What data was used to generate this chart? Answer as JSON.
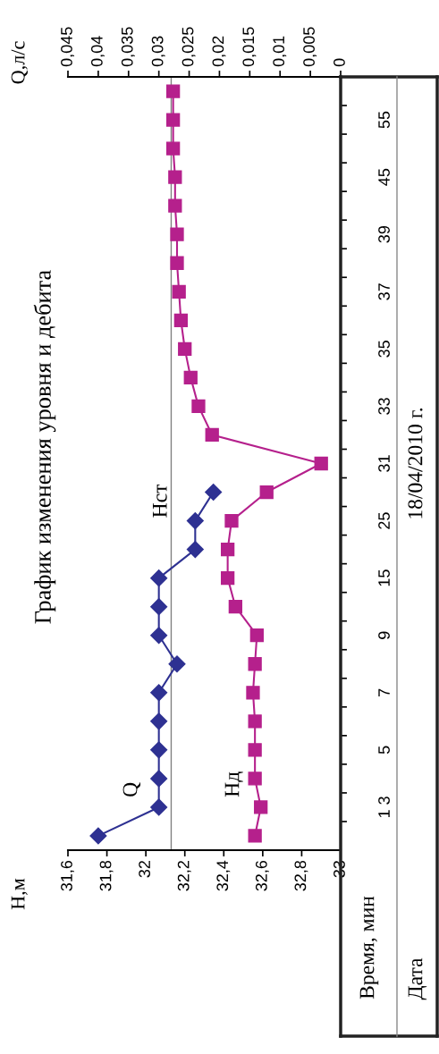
{
  "chart_data": {
    "type": "line",
    "orientation": "horizontal",
    "title": "График изменения уровня и дебита",
    "ylabel": "Время, мин",
    "categories": [
      null,
      "55",
      null,
      "45",
      null,
      "39",
      null,
      "37",
      null,
      "35",
      null,
      "33",
      null,
      "31",
      null,
      "25",
      null,
      "15",
      null,
      "9",
      null,
      "7",
      null,
      "5",
      null,
      "1 3",
      null
    ],
    "series": [
      {
        "name": "Q",
        "color": "#2e3192",
        "marker": "diamond",
        "axis": "x2",
        "values": [
          null,
          null,
          null,
          null,
          null,
          null,
          null,
          null,
          null,
          null,
          null,
          null,
          null,
          null,
          0.021,
          0.024,
          0.024,
          0.03,
          0.03,
          0.03,
          0.027,
          0.03,
          0.03,
          0.03,
          0.03,
          0.03,
          0.04
        ]
      },
      {
        "name": "Нд",
        "color": "#b5208c",
        "marker": "square",
        "values": [
          32.14,
          32.14,
          32.14,
          32.15,
          32.15,
          32.16,
          32.16,
          32.17,
          32.18,
          32.2,
          32.23,
          32.27,
          32.34,
          32.9,
          32.62,
          32.44,
          32.42,
          32.42,
          32.46,
          32.57,
          32.56,
          32.55,
          32.56,
          32.56,
          32.56,
          32.59,
          32.56
        ]
      }
    ],
    "xlim": [
      31.6,
      33
    ],
    "xticks": [
      {
        "value": 31.6,
        "label": "31,6"
      },
      {
        "value": 31.8,
        "label": "31,8"
      },
      {
        "value": 32,
        "label": "32"
      },
      {
        "value": 32.2,
        "label": "32,2"
      },
      {
        "value": 32.4,
        "label": "32,4"
      },
      {
        "value": 32.6,
        "label": "32,6"
      },
      {
        "value": 32.8,
        "label": "32,8"
      },
      {
        "value": 33,
        "label": "33"
      }
    ],
    "x2lim": [
      0.045,
      0
    ],
    "x2ticks": [
      0,
      {
        "value": 0.005,
        "label": "0,005"
      },
      {
        "value": 0.01,
        "label": "0,01"
      },
      {
        "value": 0.015,
        "label": "0,015"
      },
      {
        "value": 0.02,
        "label": "0,02"
      },
      {
        "value": 0.025,
        "label": "0,025"
      },
      {
        "value": 0.03,
        "label": "0,03"
      },
      {
        "value": 0.035,
        "label": "0,035"
      },
      {
        "value": 0.04,
        "label": "0,04"
      },
      {
        "value": 0.045,
        "label": "0,045"
      }
    ],
    "ref_lines": [
      {
        "axis": "x",
        "value": 32.13,
        "label": "Нст",
        "color": "#808080"
      }
    ],
    "annotations": [
      "Q,л/с",
      "H,м",
      "Дата",
      "18/04/2010 г."
    ],
    "grid": false,
    "legend": false,
    "line_style": "solid"
  }
}
